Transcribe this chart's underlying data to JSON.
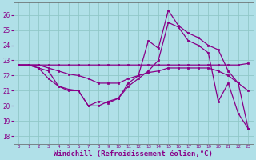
{
  "background_color": "#b0e0e8",
  "line_color": "#880088",
  "grid_color": "#90c8c8",
  "xlabel": "Windchill (Refroidissement éolien,°C)",
  "xlabel_fontsize": 6.5,
  "xtick_labels": [
    "0",
    "1",
    "2",
    "3",
    "4",
    "5",
    "6",
    "7",
    "8",
    "9",
    "10",
    "11",
    "12",
    "13",
    "14",
    "15",
    "16",
    "17",
    "18",
    "19",
    "20",
    "21",
    "22",
    "23"
  ],
  "ylim": [
    17.5,
    26.8
  ],
  "yticks": [
    18,
    19,
    20,
    21,
    22,
    23,
    24,
    25,
    26
  ],
  "series": [
    {
      "x": [
        0,
        1,
        2,
        3,
        4,
        5,
        6,
        7,
        8,
        9,
        10,
        11,
        12,
        13,
        14,
        15,
        16,
        17,
        18,
        19,
        20,
        21,
        22,
        23
      ],
      "y": [
        22.7,
        22.7,
        22.7,
        22.7,
        22.7,
        22.7,
        22.7,
        22.7,
        22.7,
        22.7,
        22.7,
        22.7,
        22.7,
        22.7,
        22.7,
        22.7,
        22.7,
        22.7,
        22.7,
        22.7,
        22.7,
        22.7,
        22.7,
        22.8
      ]
    },
    {
      "x": [
        0,
        1,
        2,
        3,
        4,
        5,
        6,
        7,
        8,
        9,
        10,
        11,
        12,
        13,
        14,
        15,
        16,
        17,
        18,
        19,
        20,
        21,
        22,
        23
      ],
      "y": [
        22.7,
        22.7,
        22.7,
        22.5,
        22.3,
        22.1,
        22.0,
        21.8,
        21.5,
        21.5,
        21.5,
        21.8,
        22.0,
        22.2,
        22.3,
        22.5,
        22.5,
        22.5,
        22.5,
        22.5,
        22.3,
        22.0,
        21.5,
        21.0
      ]
    },
    {
      "x": [
        0,
        1,
        2,
        3,
        4,
        5,
        6,
        7,
        8,
        9,
        10,
        11,
        12,
        13,
        14,
        15,
        16,
        17,
        18,
        19,
        20,
        21,
        22,
        23
      ],
      "y": [
        22.7,
        22.7,
        22.5,
        21.8,
        21.3,
        21.1,
        21.0,
        20.0,
        20.3,
        20.2,
        20.5,
        21.5,
        22.0,
        24.3,
        23.8,
        26.3,
        25.3,
        24.8,
        24.5,
        24.0,
        23.7,
        22.3,
        21.5,
        18.5
      ]
    },
    {
      "x": [
        0,
        1,
        2,
        3,
        4,
        5,
        6,
        7,
        8,
        9,
        10,
        11,
        12,
        13,
        14,
        15,
        16,
        17,
        18,
        19,
        20,
        21,
        22,
        23
      ],
      "y": [
        22.7,
        22.7,
        22.5,
        22.3,
        21.3,
        21.0,
        21.0,
        20.0,
        20.0,
        20.3,
        20.5,
        21.3,
        21.8,
        22.3,
        23.0,
        25.5,
        25.2,
        24.3,
        24.0,
        23.5,
        20.3,
        21.5,
        19.5,
        18.5
      ]
    }
  ]
}
